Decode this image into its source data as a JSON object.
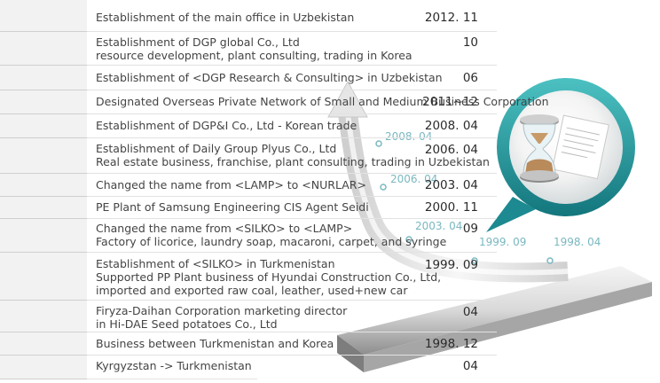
{
  "history": [
    {
      "date": "2012. 11",
      "lines": [
        "Establishment of the main office in Uzbekistan"
      ]
    },
    {
      "date": "10",
      "lines": [
        "Establishment of DGP global Co., Ltd",
        "resource development, plant consulting, trading in Korea"
      ]
    },
    {
      "date": "06",
      "lines": [
        "Establishment of <DGP Research & Consulting> in Uzbekistan"
      ]
    },
    {
      "date": "2011~12",
      "lines": [
        "Designated Overseas Private Network of Small and Medium Business Corporation"
      ]
    },
    {
      "date": "2008. 04",
      "lines": [
        "Establishment of DGP&I Co., Ltd - Korean trade"
      ]
    },
    {
      "date": "2006. 04",
      "lines": [
        "Establishment of Daily Group Plyus Co., Ltd",
        "Real estate business, franchise, plant consulting, trading in Uzbekistan"
      ]
    },
    {
      "date": "2003. 04",
      "lines": [
        "Changed the name from <LAMP> to <NURLAR>"
      ]
    },
    {
      "date": "2000. 11",
      "lines": [
        "PE Plant of Samsung Engineering CIS Agent Seidi"
      ]
    },
    {
      "date": "09",
      "lines": [
        "Changed the name from <SILKO> to <LAMP>",
        "Factory of licorice, laundry soap, macaroni, carpet, and syringe"
      ]
    },
    {
      "date": "1999. 09",
      "lines": [
        "Establishment of <SILKO> in Turkmenistan",
        "Supported PP Plant business of Hyundai Construction Co., Ltd,",
        "imported and exported raw coal, leather, used+new car"
      ]
    },
    {
      "date": "04",
      "lines": [
        "Firyza-Daihan Corporation marketing director",
        "in Hi-DAE Seed potatoes Co., Ltd"
      ]
    },
    {
      "date": "1998. 12",
      "lines": [
        "Business between Turkmenistan and Korea"
      ]
    },
    {
      "date": "04",
      "lines": [
        "Kyrgyzstan -> Turkmenistan"
      ]
    }
  ],
  "timeline_labels": [
    "2008. 04",
    "2006. 04",
    "2003. 04",
    "1999. 09",
    "1998. 04"
  ],
  "colors": {
    "accent": "#1f8f96",
    "accent_light": "#7ab8c0",
    "date_cell": "#f2f2f2"
  },
  "icons": {
    "badge": "hourglass-document-icon"
  }
}
